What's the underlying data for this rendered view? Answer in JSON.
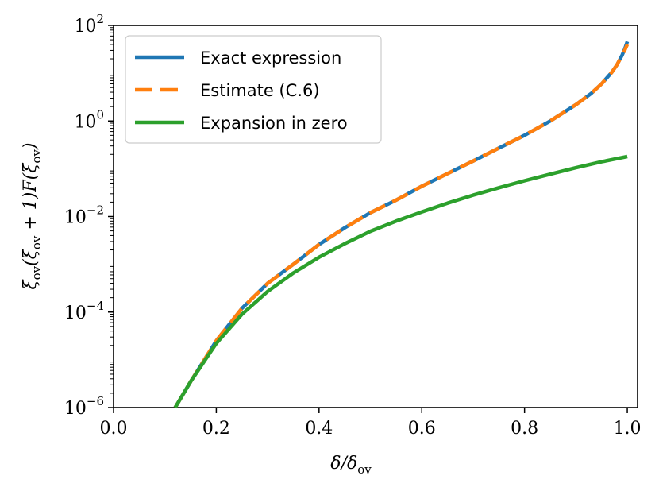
{
  "chart_data": {
    "type": "line",
    "xlabel": "δ/δov",
    "ylabel": "ξov(ξov + 1)F(ξov)",
    "xlim": [
      0.0,
      1.02
    ],
    "ylim_log10": [
      -6,
      2
    ],
    "yscale": "log",
    "grid": false,
    "legend_position": "top-left",
    "x_ticks": [
      {
        "value": 0.0,
        "label": "0.0"
      },
      {
        "value": 0.2,
        "label": "0.2"
      },
      {
        "value": 0.4,
        "label": "0.4"
      },
      {
        "value": 0.6,
        "label": "0.6"
      },
      {
        "value": 0.8,
        "label": "0.8"
      },
      {
        "value": 1.0,
        "label": "1.0"
      }
    ],
    "y_ticks": [
      {
        "exp": -6,
        "base": "10",
        "sup": "−6"
      },
      {
        "exp": -4,
        "base": "10",
        "sup": "−4"
      },
      {
        "exp": -2,
        "base": "10",
        "sup": "−2"
      },
      {
        "exp": 0,
        "base": "10",
        "sup": "0"
      },
      {
        "exp": 2,
        "base": "10",
        "sup": "2"
      }
    ],
    "series": [
      {
        "name": "Exact expression",
        "color": "#1f77b4",
        "style": "solid",
        "x": [
          0.12,
          0.15,
          0.2,
          0.25,
          0.3,
          0.35,
          0.4,
          0.45,
          0.5,
          0.55,
          0.6,
          0.65,
          0.7,
          0.75,
          0.8,
          0.85,
          0.9,
          0.93,
          0.95,
          0.97,
          0.98,
          0.99,
          0.995,
          1.0
        ],
        "y": [
          1e-06,
          3.5e-06,
          2.5e-05,
          0.00012,
          0.0004,
          0.001,
          0.0026,
          0.0058,
          0.012,
          0.022,
          0.043,
          0.079,
          0.145,
          0.27,
          0.5,
          1.0,
          2.2,
          3.8,
          6.0,
          10.5,
          15.0,
          24.0,
          32.0,
          46.0
        ]
      },
      {
        "name": "Estimate (C.6)",
        "color": "#ff7f0e",
        "style": "dashed",
        "x": [
          0.12,
          0.15,
          0.2,
          0.25,
          0.3,
          0.35,
          0.4,
          0.45,
          0.5,
          0.55,
          0.6,
          0.65,
          0.7,
          0.75,
          0.8,
          0.85,
          0.9,
          0.93,
          0.95,
          0.97,
          0.98,
          0.99,
          0.995,
          1.0
        ],
        "y": [
          1e-06,
          3.5e-06,
          2.5e-05,
          0.00012,
          0.0004,
          0.001,
          0.0026,
          0.0058,
          0.012,
          0.022,
          0.043,
          0.079,
          0.145,
          0.27,
          0.5,
          1.0,
          2.2,
          3.8,
          6.0,
          10.5,
          15.0,
          24.0,
          30.0,
          40.0
        ]
      },
      {
        "name": "Expansion in zero",
        "color": "#2ca02c",
        "style": "solid",
        "x": [
          0.12,
          0.15,
          0.2,
          0.25,
          0.3,
          0.35,
          0.4,
          0.45,
          0.5,
          0.55,
          0.6,
          0.65,
          0.7,
          0.75,
          0.8,
          0.85,
          0.9,
          0.95,
          1.0
        ],
        "y": [
          1e-06,
          3.5e-06,
          2.2e-05,
          9e-05,
          0.00027,
          0.00066,
          0.0014,
          0.0027,
          0.0049,
          0.008,
          0.0125,
          0.019,
          0.028,
          0.04,
          0.056,
          0.077,
          0.105,
          0.14,
          0.18
        ]
      }
    ]
  }
}
